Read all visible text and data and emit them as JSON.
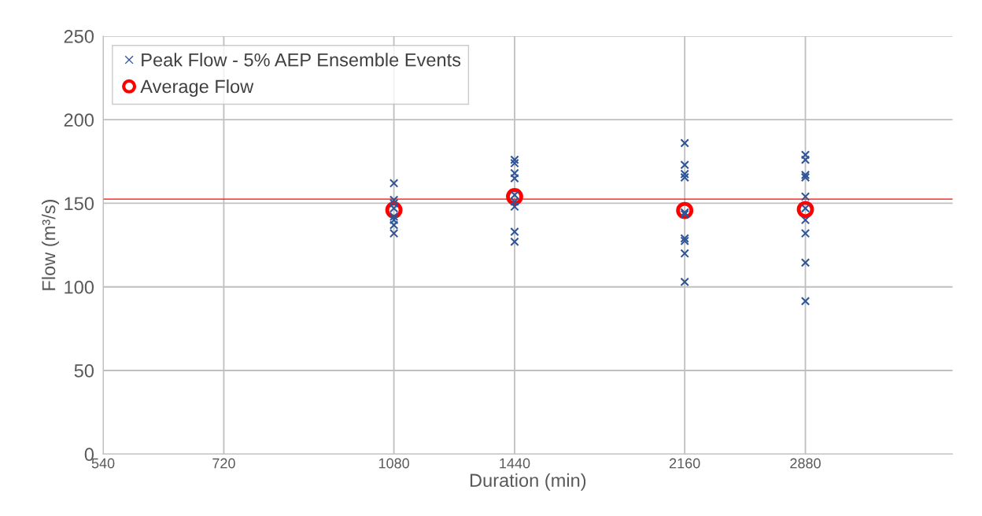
{
  "chart_data": {
    "type": "scatter",
    "xlabel": "Duration (min)",
    "ylabel": "Flow (m³/s)",
    "log": "x",
    "xlim": [
      540,
      4090
    ],
    "xticks": [
      540,
      720,
      1080,
      1440,
      2160,
      2880
    ],
    "ylim": [
      0,
      250
    ],
    "yticks": [
      0,
      50,
      100,
      150,
      200,
      250
    ],
    "grid": true,
    "legend": "top left",
    "series": [
      {
        "name": "Peak Flow - 5% AEP Ensemble Events",
        "color": "#2f5597",
        "marker": "cross",
        "x": [
          1080,
          1080,
          1080,
          1080,
          1080,
          1080,
          1080,
          1080,
          1440,
          1440,
          1440,
          1440,
          1440,
          1440,
          1440,
          1440,
          1440,
          2160,
          2160,
          2160,
          2160,
          2160,
          2160,
          2160,
          2160,
          2160,
          2160,
          2880,
          2880,
          2880,
          2880,
          2880,
          2880,
          2880,
          2880,
          2880,
          2880
        ],
        "values": [
          162,
          152,
          150,
          147,
          142,
          140,
          137,
          132,
          176,
          174,
          168,
          165,
          155,
          151,
          148,
          133,
          127,
          186,
          173,
          167.5,
          165.5,
          144.5,
          143.5,
          129,
          127.5,
          120,
          103,
          179,
          176,
          167,
          165.5,
          154,
          147,
          140,
          132,
          114.5,
          91.5
        ]
      },
      {
        "name": "Average Flow",
        "color": "#ff0000",
        "marker": "circle",
        "x": [
          1080,
          1440,
          2160,
          2880
        ],
        "values": [
          146,
          154,
          145.7,
          146.3
        ]
      }
    ],
    "ref_lines": [
      {
        "axis": "y",
        "value": 152.5,
        "color": "#ff0000",
        "line_style": "solid"
      }
    ]
  }
}
